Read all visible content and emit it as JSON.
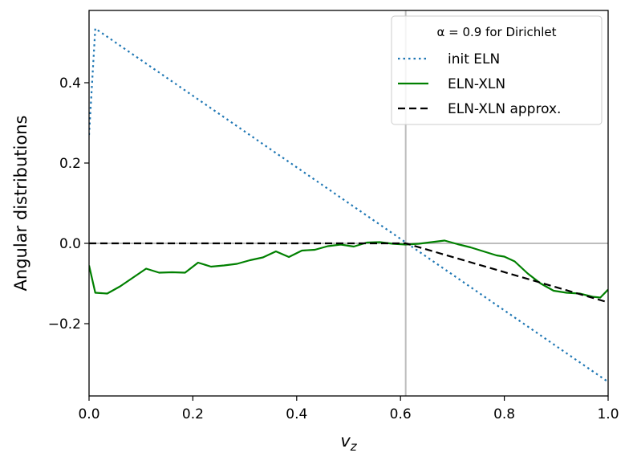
{
  "chart_data": {
    "type": "line",
    "xlabel": "v_z",
    "ylabel": "Angular distributions",
    "xlim": [
      0.0,
      1.0
    ],
    "ylim": [
      -0.38,
      0.58
    ],
    "x_ticks": [
      "0.0",
      "0.2",
      "0.4",
      "0.6",
      "0.8",
      "1.0"
    ],
    "x_tick_values": [
      0.0,
      0.2,
      0.4,
      0.6,
      0.8,
      1.0
    ],
    "y_ticks": [
      "−0.2",
      "0.0",
      "0.2",
      "0.4"
    ],
    "y_tick_values": [
      -0.2,
      0.0,
      0.2,
      0.4
    ],
    "grid": false,
    "legend_placement": "top-right",
    "legend_title": "α = 0.9 for Dirichlet",
    "reference_lines": {
      "vertical_x": 0.61,
      "horizontal_y": 0.0
    },
    "series": [
      {
        "name": "init ELN",
        "color": "#1f77b4",
        "style": "dotted",
        "x": [
          0.0,
          0.012,
          1.0
        ],
        "y": [
          0.27,
          0.535,
          -0.345
        ]
      },
      {
        "name": "ELN-XLN",
        "color": "#008000",
        "style": "solid",
        "x": [
          0.0,
          0.012,
          0.035,
          0.06,
          0.085,
          0.11,
          0.135,
          0.16,
          0.185,
          0.21,
          0.235,
          0.26,
          0.285,
          0.31,
          0.335,
          0.36,
          0.385,
          0.41,
          0.435,
          0.46,
          0.485,
          0.51,
          0.535,
          0.56,
          0.585,
          0.61,
          0.635,
          0.66,
          0.685,
          0.71,
          0.735,
          0.76,
          0.785,
          0.8,
          0.82,
          0.845,
          0.87,
          0.895,
          0.92,
          0.945,
          0.97,
          0.985,
          1.0
        ],
        "y": [
          -0.055,
          -0.123,
          -0.125,
          -0.107,
          -0.085,
          -0.063,
          -0.073,
          -0.072,
          -0.073,
          -0.048,
          -0.058,
          -0.055,
          -0.051,
          -0.042,
          -0.035,
          -0.02,
          -0.034,
          -0.018,
          -0.016,
          -0.007,
          -0.003,
          -0.008,
          0.002,
          0.003,
          -0.001,
          -0.003,
          -0.001,
          0.003,
          0.007,
          -0.002,
          -0.01,
          -0.02,
          -0.03,
          -0.033,
          -0.045,
          -0.075,
          -0.1,
          -0.118,
          -0.123,
          -0.125,
          -0.133,
          -0.135,
          -0.115
        ]
      },
      {
        "name": "ELN-XLN approx.",
        "color": "#000000",
        "style": "dashed",
        "x": [
          0.0,
          0.61,
          1.0
        ],
        "y": [
          0.0,
          0.0,
          -0.147
        ]
      }
    ]
  }
}
